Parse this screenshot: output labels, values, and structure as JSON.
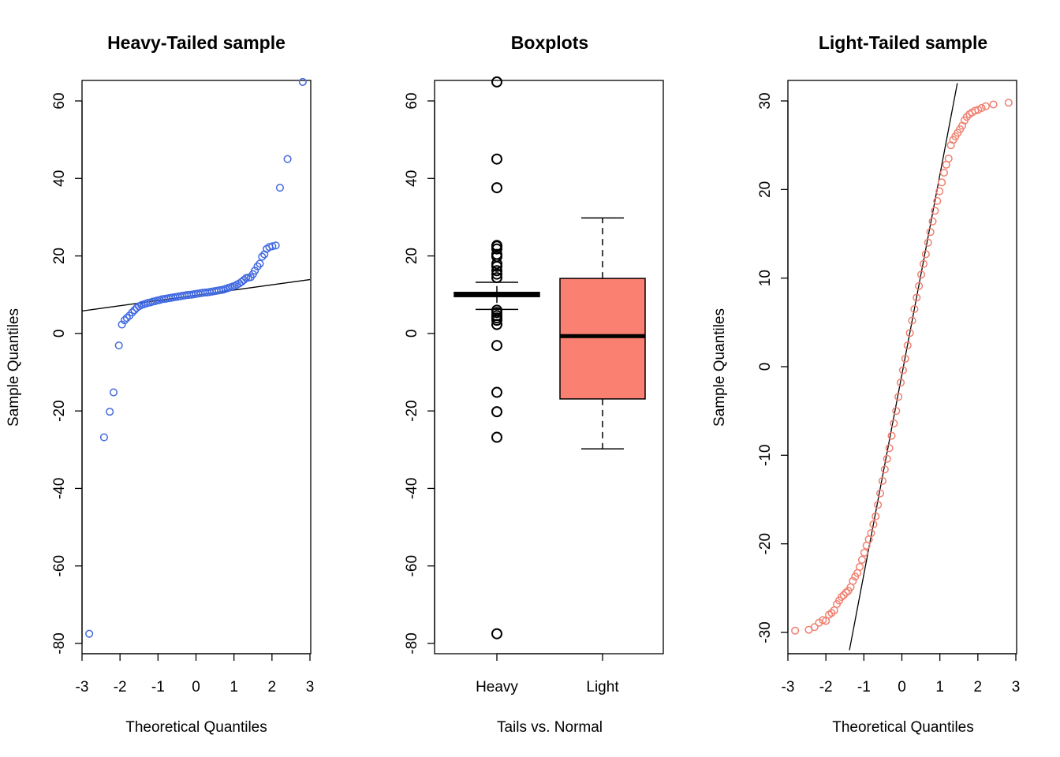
{
  "chart_data": [
    {
      "type": "scatter",
      "title": "Heavy-Tailed sample",
      "xlabel": "Theoretical Quantiles",
      "ylabel": "Sample Quantiles",
      "xlim": [
        -3,
        3
      ],
      "ylim": [
        -80,
        65
      ],
      "xticks": [
        "-3",
        "-2",
        "-1",
        "0",
        "1",
        "2",
        "3"
      ],
      "yticks": [
        "-80",
        "-60",
        "-40",
        "-20",
        "0",
        "20",
        "40",
        "60"
      ],
      "point_color": "#4169E1",
      "reference_line": {
        "x1": -3,
        "y1": 5.8,
        "x2": 3,
        "y2": 13.9
      },
      "points": [
        [
          -2.81,
          -77.5
        ],
        [
          -2.42,
          -26.8
        ],
        [
          -2.27,
          -20.2
        ],
        [
          -2.17,
          -15.2
        ],
        [
          -2.03,
          -3.1
        ],
        [
          -1.95,
          2.3
        ],
        [
          -1.88,
          3.4
        ],
        [
          -1.82,
          4.0
        ],
        [
          -1.75,
          4.6
        ],
        [
          -1.68,
          5.4
        ],
        [
          -1.62,
          6.0
        ],
        [
          -1.56,
          6.6
        ],
        [
          -1.5,
          7.0
        ],
        [
          -1.44,
          7.3
        ],
        [
          -1.38,
          7.5
        ],
        [
          -1.32,
          7.7
        ],
        [
          -1.26,
          7.9
        ],
        [
          -1.2,
          8.0
        ],
        [
          -1.14,
          8.2
        ],
        [
          -1.08,
          8.3
        ],
        [
          -1.02,
          8.5
        ],
        [
          -0.96,
          8.6
        ],
        [
          -0.9,
          8.8
        ],
        [
          -0.84,
          8.9
        ],
        [
          -0.78,
          9.0
        ],
        [
          -0.72,
          9.1
        ],
        [
          -0.66,
          9.2
        ],
        [
          -0.6,
          9.3
        ],
        [
          -0.54,
          9.4
        ],
        [
          -0.48,
          9.5
        ],
        [
          -0.42,
          9.6
        ],
        [
          -0.36,
          9.7
        ],
        [
          -0.3,
          9.8
        ],
        [
          -0.24,
          9.9
        ],
        [
          -0.18,
          9.95
        ],
        [
          -0.12,
          10.0
        ],
        [
          -0.06,
          10.1
        ],
        [
          0.0,
          10.2
        ],
        [
          0.06,
          10.3
        ],
        [
          0.12,
          10.4
        ],
        [
          0.18,
          10.5
        ],
        [
          0.24,
          10.55
        ],
        [
          0.3,
          10.6
        ],
        [
          0.36,
          10.7
        ],
        [
          0.42,
          10.8
        ],
        [
          0.48,
          10.9
        ],
        [
          0.54,
          11.0
        ],
        [
          0.6,
          11.1
        ],
        [
          0.66,
          11.2
        ],
        [
          0.72,
          11.3
        ],
        [
          0.78,
          11.5
        ],
        [
          0.84,
          11.7
        ],
        [
          0.9,
          11.9
        ],
        [
          0.96,
          12.1
        ],
        [
          1.02,
          12.3
        ],
        [
          1.08,
          12.6
        ],
        [
          1.14,
          12.9
        ],
        [
          1.2,
          13.3
        ],
        [
          1.26,
          13.8
        ],
        [
          1.32,
          14.3
        ],
        [
          1.38,
          14.4
        ],
        [
          1.44,
          14.5
        ],
        [
          1.5,
          15.3
        ],
        [
          1.55,
          16.2
        ],
        [
          1.62,
          17.3
        ],
        [
          1.68,
          18.0
        ],
        [
          1.74,
          19.8
        ],
        [
          1.8,
          20.4
        ],
        [
          1.86,
          21.8
        ],
        [
          1.93,
          22.3
        ],
        [
          2.01,
          22.5
        ],
        [
          2.1,
          22.7
        ],
        [
          2.21,
          37.6
        ],
        [
          2.41,
          45.0
        ],
        [
          2.81,
          64.9
        ]
      ]
    },
    {
      "type": "box",
      "title": "Boxplots",
      "xlabel": "Tails vs. Normal",
      "ylabel": "",
      "ylim": [
        -80,
        65
      ],
      "categories": [
        "Heavy",
        "Light"
      ],
      "yticks": [
        "-80",
        "-60",
        "-40",
        "-20",
        "0",
        "20",
        "40",
        "60"
      ],
      "boxes": [
        {
          "name": "Heavy",
          "q1": 9.5,
          "median": 10.0,
          "q3": 10.6,
          "whisker_low": 6.2,
          "whisker_high": 13.2,
          "fill": "#000000",
          "outliers": [
            64.9,
            45.0,
            37.6,
            22.7,
            22.5,
            21.8,
            20.4,
            19.8,
            18.0,
            17.3,
            16.2,
            15.3,
            14.4,
            6.0,
            5.4,
            4.6,
            4.0,
            3.4,
            2.3,
            -3.1,
            -15.2,
            -20.2,
            -26.8,
            -77.5
          ]
        },
        {
          "name": "Light",
          "q1": -16.9,
          "median": -0.7,
          "q3": 14.2,
          "whisker_low": -29.8,
          "whisker_high": 29.8,
          "fill": "#FA8072",
          "outliers": []
        }
      ]
    },
    {
      "type": "scatter",
      "title": "Light-Tailed sample",
      "xlabel": "Theoretical Quantiles",
      "ylabel": "Sample Quantiles",
      "xlim": [
        -3,
        3
      ],
      "ylim": [
        -32,
        32
      ],
      "xticks": [
        "-3",
        "-2",
        "-1",
        "0",
        "1",
        "2",
        "3"
      ],
      "yticks": [
        "-30",
        "-20",
        "-10",
        "0",
        "10",
        "20",
        "30"
      ],
      "point_color": "#F08070",
      "reference_line": {
        "x1": -1.38,
        "y1": -32,
        "x2": 1.46,
        "y2": 32
      },
      "points": [
        [
          -2.81,
          -29.8
        ],
        [
          -2.45,
          -29.7
        ],
        [
          -2.3,
          -29.4
        ],
        [
          -2.18,
          -28.9
        ],
        [
          -2.08,
          -28.6
        ],
        [
          -2.0,
          -28.7
        ],
        [
          -1.92,
          -28.0
        ],
        [
          -1.85,
          -27.8
        ],
        [
          -1.78,
          -27.5
        ],
        [
          -1.71,
          -26.8
        ],
        [
          -1.65,
          -26.4
        ],
        [
          -1.59,
          -26.0
        ],
        [
          -1.53,
          -25.8
        ],
        [
          -1.47,
          -25.5
        ],
        [
          -1.41,
          -25.3
        ],
        [
          -1.35,
          -24.9
        ],
        [
          -1.29,
          -24.2
        ],
        [
          -1.23,
          -23.7
        ],
        [
          -1.17,
          -23.3
        ],
        [
          -1.11,
          -22.6
        ],
        [
          -1.05,
          -21.8
        ],
        [
          -0.99,
          -21.0
        ],
        [
          -0.93,
          -20.2
        ],
        [
          -0.87,
          -19.5
        ],
        [
          -0.81,
          -18.8
        ],
        [
          -0.75,
          -17.8
        ],
        [
          -0.69,
          -16.9
        ],
        [
          -0.63,
          -15.6
        ],
        [
          -0.57,
          -14.3
        ],
        [
          -0.51,
          -12.9
        ],
        [
          -0.45,
          -11.6
        ],
        [
          -0.39,
          -10.4
        ],
        [
          -0.33,
          -9.2
        ],
        [
          -0.27,
          -7.8
        ],
        [
          -0.21,
          -6.4
        ],
        [
          -0.15,
          -5.0
        ],
        [
          -0.09,
          -3.4
        ],
        [
          -0.03,
          -1.8
        ],
        [
          0.03,
          -0.4
        ],
        [
          0.09,
          0.9
        ],
        [
          0.15,
          2.4
        ],
        [
          0.21,
          3.8
        ],
        [
          0.27,
          5.2
        ],
        [
          0.33,
          6.5
        ],
        [
          0.39,
          7.8
        ],
        [
          0.45,
          9.1
        ],
        [
          0.51,
          10.4
        ],
        [
          0.57,
          11.6
        ],
        [
          0.63,
          12.7
        ],
        [
          0.69,
          14.0
        ],
        [
          0.75,
          15.2
        ],
        [
          0.81,
          16.4
        ],
        [
          0.87,
          17.6
        ],
        [
          0.93,
          18.7
        ],
        [
          0.99,
          19.8
        ],
        [
          1.05,
          20.8
        ],
        [
          1.11,
          21.9
        ],
        [
          1.17,
          22.8
        ],
        [
          1.23,
          23.5
        ],
        [
          1.29,
          25.0
        ],
        [
          1.35,
          25.6
        ],
        [
          1.41,
          26.0
        ],
        [
          1.47,
          26.4
        ],
        [
          1.53,
          26.8
        ],
        [
          1.59,
          27.2
        ],
        [
          1.65,
          27.8
        ],
        [
          1.71,
          28.2
        ],
        [
          1.78,
          28.5
        ],
        [
          1.85,
          28.7
        ],
        [
          1.93,
          28.9
        ],
        [
          2.01,
          29.0
        ],
        [
          2.1,
          29.2
        ],
        [
          2.21,
          29.4
        ],
        [
          2.41,
          29.6
        ],
        [
          2.81,
          29.8
        ]
      ]
    }
  ]
}
